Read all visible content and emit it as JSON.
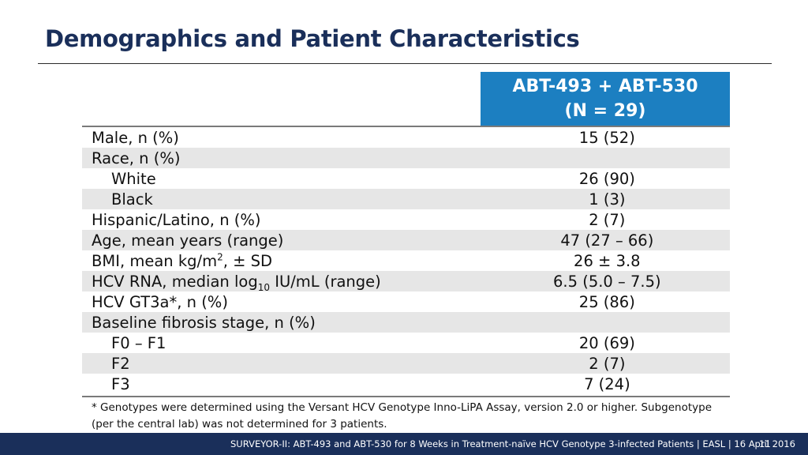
{
  "slide": {
    "title": "Demographics and Patient Characteristics",
    "column_header_line1": "ABT-493 + ABT-530",
    "column_header_line2": "(N = 29)"
  },
  "rows": [
    {
      "label": "Male, n (%)",
      "value": "15 (52)"
    },
    {
      "label": "Race, n (%)",
      "value": ""
    },
    {
      "label": "White",
      "value": "26 (90)"
    },
    {
      "label": "Black",
      "value": "1 (3)"
    },
    {
      "label": "Hispanic/Latino, n (%)",
      "value": "2 (7)"
    },
    {
      "label": "Age, mean years (range)",
      "value": "47 (27 – 66)"
    },
    {
      "label_pre": "BMI, mean kg/m",
      "label_sup": "2",
      "label_post": ", ± SD",
      "value": "26 ± 3.8"
    },
    {
      "label_pre": "HCV RNA, median log",
      "label_sub": "10",
      "label_post": " IU/mL (range)",
      "value": "6.5 (5.0 – 7.5)"
    },
    {
      "label": "HCV GT3a*, n (%)",
      "value": "25 (86)"
    },
    {
      "label": "Baseline fibrosis stage, n (%)",
      "value": ""
    },
    {
      "label": "F0 – F1",
      "value": "20 (69)"
    },
    {
      "label": "F2",
      "value": "2 (7)"
    },
    {
      "label": "F3",
      "value": "7 (24)"
    }
  ],
  "footnote": "* Genotypes were determined using the Versant HCV Genotype Inno-LiPA Assay, version 2.0 or higher. Subgenotype (per the central lab) was not determined for 3 patients.",
  "footer": {
    "text": "SURVEYOR-II: ABT-493 and ABT-530 for 8 Weeks in Treatment-naïve HCV Genotype 3-infected Patients  | EASL | 16 April 2016",
    "page": "11"
  }
}
